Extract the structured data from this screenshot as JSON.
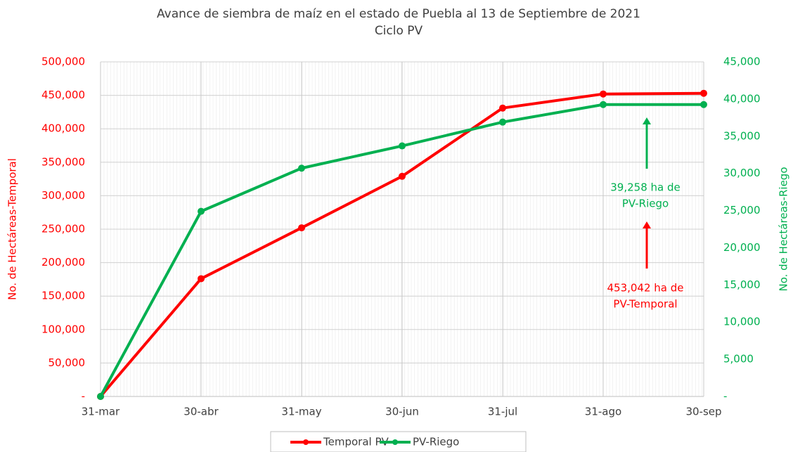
{
  "chart_data": {
    "type": "line",
    "title": "Avance de siembra de maíz en el estado de Puebla al 13 de Septiembre de 2021",
    "subtitle": "Ciclo PV",
    "categories": [
      "31-mar",
      "30-abr",
      "31-may",
      "30-jun",
      "31-jul",
      "31-ago",
      "30-sep"
    ],
    "series": [
      {
        "name": "Temporal PV",
        "color": "#ff0000",
        "values": [
          0,
          176000,
          252000,
          329000,
          431000,
          452000,
          453042
        ]
      },
      {
        "name": "PV-Riego",
        "color": "#00b050",
        "axis": "y2",
        "values": [
          0,
          24900,
          30700,
          33700,
          36900,
          39258,
          39258
        ]
      }
    ],
    "ylabel": "No. de Hectáreas-Temporal",
    "y2label": "No. de Hectáreas-Riego",
    "ylim": [
      0,
      500000
    ],
    "yticks": [
      {
        "value": 0,
        "label": "-"
      },
      {
        "value": 50000,
        "label": "50,000"
      },
      {
        "value": 100000,
        "label": "100,000"
      },
      {
        "value": 150000,
        "label": "150,000"
      },
      {
        "value": 200000,
        "label": "200,000"
      },
      {
        "value": 250000,
        "label": "250,000"
      },
      {
        "value": 300000,
        "label": "300,000"
      },
      {
        "value": 350000,
        "label": "350,000"
      },
      {
        "value": 400000,
        "label": "400,000"
      },
      {
        "value": 450000,
        "label": "450,000"
      },
      {
        "value": 500000,
        "label": "500,000"
      }
    ],
    "y2lim": [
      0,
      45000
    ],
    "y2ticks": [
      {
        "value": 0,
        "label": "-"
      },
      {
        "value": 5000,
        "label": "5,000"
      },
      {
        "value": 10000,
        "label": "10,000"
      },
      {
        "value": 15000,
        "label": "15,000"
      },
      {
        "value": 20000,
        "label": "20,000"
      },
      {
        "value": 25000,
        "label": "25,000"
      },
      {
        "value": 30000,
        "label": "30,000"
      },
      {
        "value": 35000,
        "label": "35,000"
      },
      {
        "value": 40000,
        "label": "40,000"
      },
      {
        "value": 45000,
        "label": "45,000"
      }
    ],
    "grid": true,
    "legend": "bottom",
    "annotations": [
      {
        "lines": [
          "39,258 ha de",
          "PV-Riego"
        ],
        "color": "#00b050"
      },
      {
        "lines": [
          "453,042 ha de",
          "PV-Temporal"
        ],
        "color": "#ff0000"
      }
    ]
  }
}
